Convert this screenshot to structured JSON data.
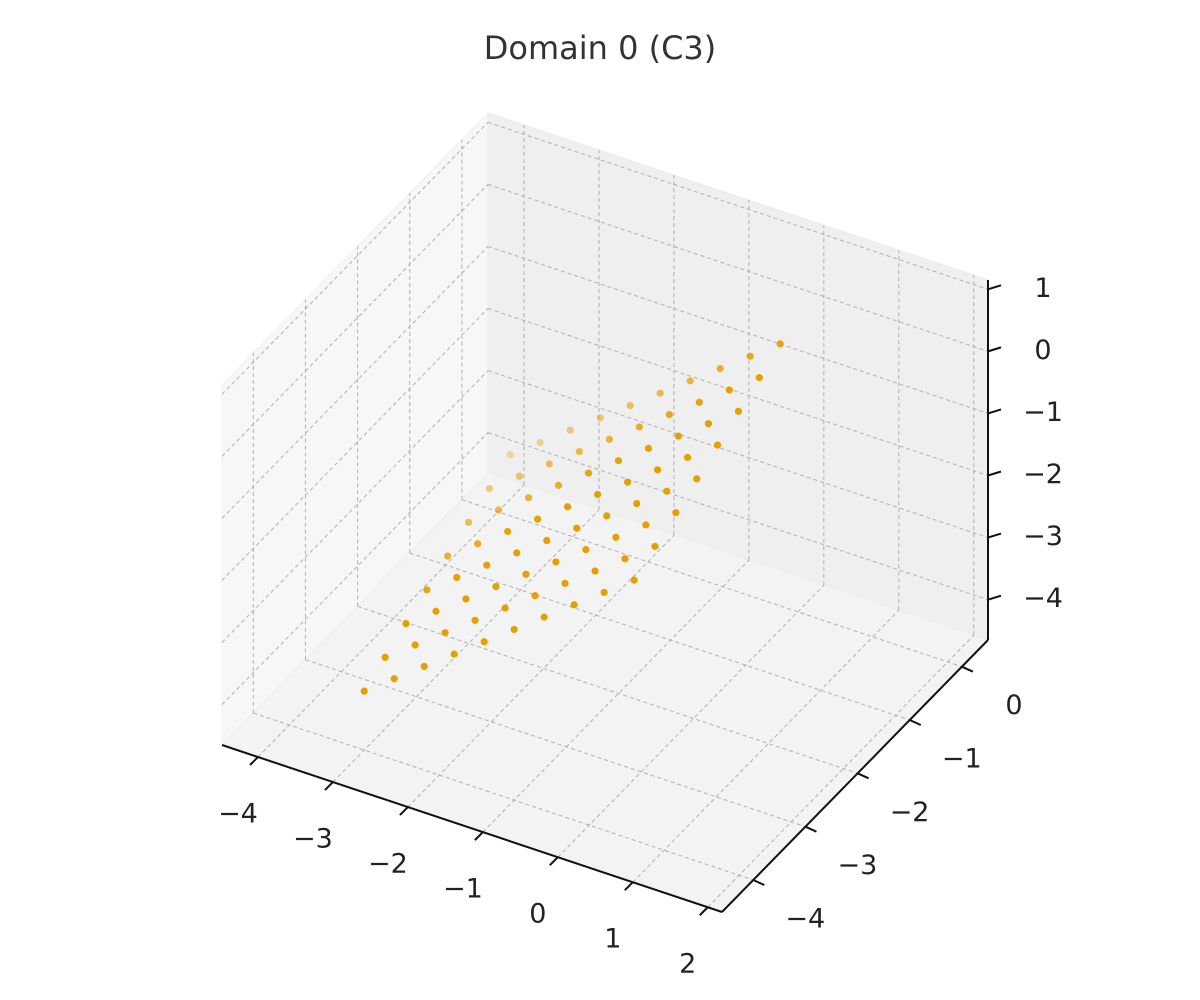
{
  "chart_data": {
    "type": "scatter3d",
    "title": "Domain 0 (C3)",
    "series": [
      {
        "color": "#e5a000",
        "x": [
          -3,
          -3,
          -3,
          -3,
          -3,
          -3,
          -3,
          -3,
          -2.6,
          -2.6,
          -2.6,
          -2.6,
          -2.6,
          -2.6,
          -2.6,
          -2.6,
          -2.2,
          -2.2,
          -2.2,
          -2.2,
          -2.2,
          -2.2,
          -2.2,
          -2.2,
          -1.8,
          -1.8,
          -1.8,
          -1.8,
          -1.8,
          -1.8,
          -1.8,
          -1.8,
          -1.4,
          -1.4,
          -1.4,
          -1.4,
          -1.4,
          -1.4,
          -1.4,
          -1.4,
          -1,
          -1,
          -1,
          -1,
          -1,
          -1,
          -1,
          -1,
          -0.6,
          -0.6,
          -0.6,
          -0.6,
          -0.6,
          -0.6,
          -0.6,
          -0.6,
          -0.2,
          -0.2,
          -0.2,
          -0.2,
          -0.2,
          -0.2,
          -0.2,
          -0.2,
          0.2,
          0.2,
          0.2,
          0.2,
          0.2,
          0.2,
          0.2,
          0.2,
          0.6,
          0.6,
          0.6,
          0.6,
          0.6,
          0.6,
          0.6,
          0.6
        ],
        "y": [
          -4,
          -3.6,
          -3.2,
          -2.8,
          -2.4,
          -2,
          -1.6,
          -1.2,
          -4,
          -3.6,
          -3.2,
          -2.8,
          -2.4,
          -2,
          -1.6,
          -1.2,
          -4,
          -3.6,
          -3.2,
          -2.8,
          -2.4,
          -2,
          -1.6,
          -1.2,
          -4,
          -3.6,
          -3.2,
          -2.8,
          -2.4,
          -2,
          -1.6,
          -1.2,
          -4,
          -3.6,
          -3.2,
          -2.8,
          -2.4,
          -2,
          -1.6,
          -1.2,
          -4,
          -3.6,
          -3.2,
          -2.8,
          -2.4,
          -2,
          -1.6,
          -1.2,
          -4,
          -3.6,
          -3.2,
          -2.8,
          -2.4,
          -2,
          -1.6,
          -1.2,
          -4,
          -3.6,
          -3.2,
          -2.8,
          -2.4,
          -2,
          -1.6,
          -1.2,
          -4,
          -3.6,
          -3.2,
          -2.8,
          -2.4,
          -2,
          -1.6,
          -1.2,
          -4,
          -3.6,
          -3.2,
          -2.8,
          -2.4,
          -2,
          -1.6,
          -1.2
        ],
        "z": [
          -3.7,
          -3.5,
          -3.3,
          -3.1,
          -2.9,
          -2.7,
          -2.5,
          -2.3,
          -3.34,
          -3.14,
          -2.94,
          -2.74,
          -2.54,
          -2.34,
          -2.14,
          -1.94,
          -2.98,
          -2.78,
          -2.58,
          -2.38,
          -2.18,
          -1.98,
          -1.78,
          -1.58,
          -2.62,
          -2.42,
          -2.22,
          -2.02,
          -1.82,
          -1.62,
          -1.42,
          -1.22,
          -2.26,
          -2.06,
          -1.86,
          -1.66,
          -1.46,
          -1.26,
          -1.06,
          -0.86,
          -1.9,
          -1.7,
          -1.5,
          -1.3,
          -1.1,
          -0.9,
          -0.7,
          -0.5,
          -1.54,
          -1.34,
          -1.14,
          -0.94,
          -0.74,
          -0.54,
          -0.34,
          -0.14,
          -1.18,
          -0.98,
          -0.78,
          -0.58,
          -0.38,
          -0.18,
          0.02,
          0.22,
          -0.82,
          -0.62,
          -0.42,
          -0.22,
          -0.02,
          0.18,
          0.38,
          0.58,
          -0.46,
          -0.26,
          -0.06,
          0.14,
          0.34,
          0.54,
          0.74,
          0.94
        ]
      }
    ],
    "xlim": [
      -4.48,
      2.19
    ],
    "ylim": [
      -4.6,
      0.5
    ],
    "zlim": [
      -4.65,
      1.15
    ],
    "xticks": [
      {
        "value": -4,
        "label": "−4"
      },
      {
        "value": -3,
        "label": "−3"
      },
      {
        "value": -2,
        "label": "−2"
      },
      {
        "value": -1,
        "label": "−1"
      },
      0,
      1,
      2
    ],
    "yticks": [
      {
        "value": -4,
        "label": "−4"
      },
      {
        "value": -3,
        "label": "−3"
      },
      {
        "value": -2,
        "label": "−2"
      },
      {
        "value": -1,
        "label": "−1"
      },
      0
    ],
    "zticks": [
      {
        "value": -4,
        "label": "−4"
      },
      {
        "value": -3,
        "label": "−3"
      },
      {
        "value": -2,
        "label": "−2"
      },
      {
        "value": -1,
        "label": "−1"
      },
      0,
      1
    ],
    "grid": true
  }
}
